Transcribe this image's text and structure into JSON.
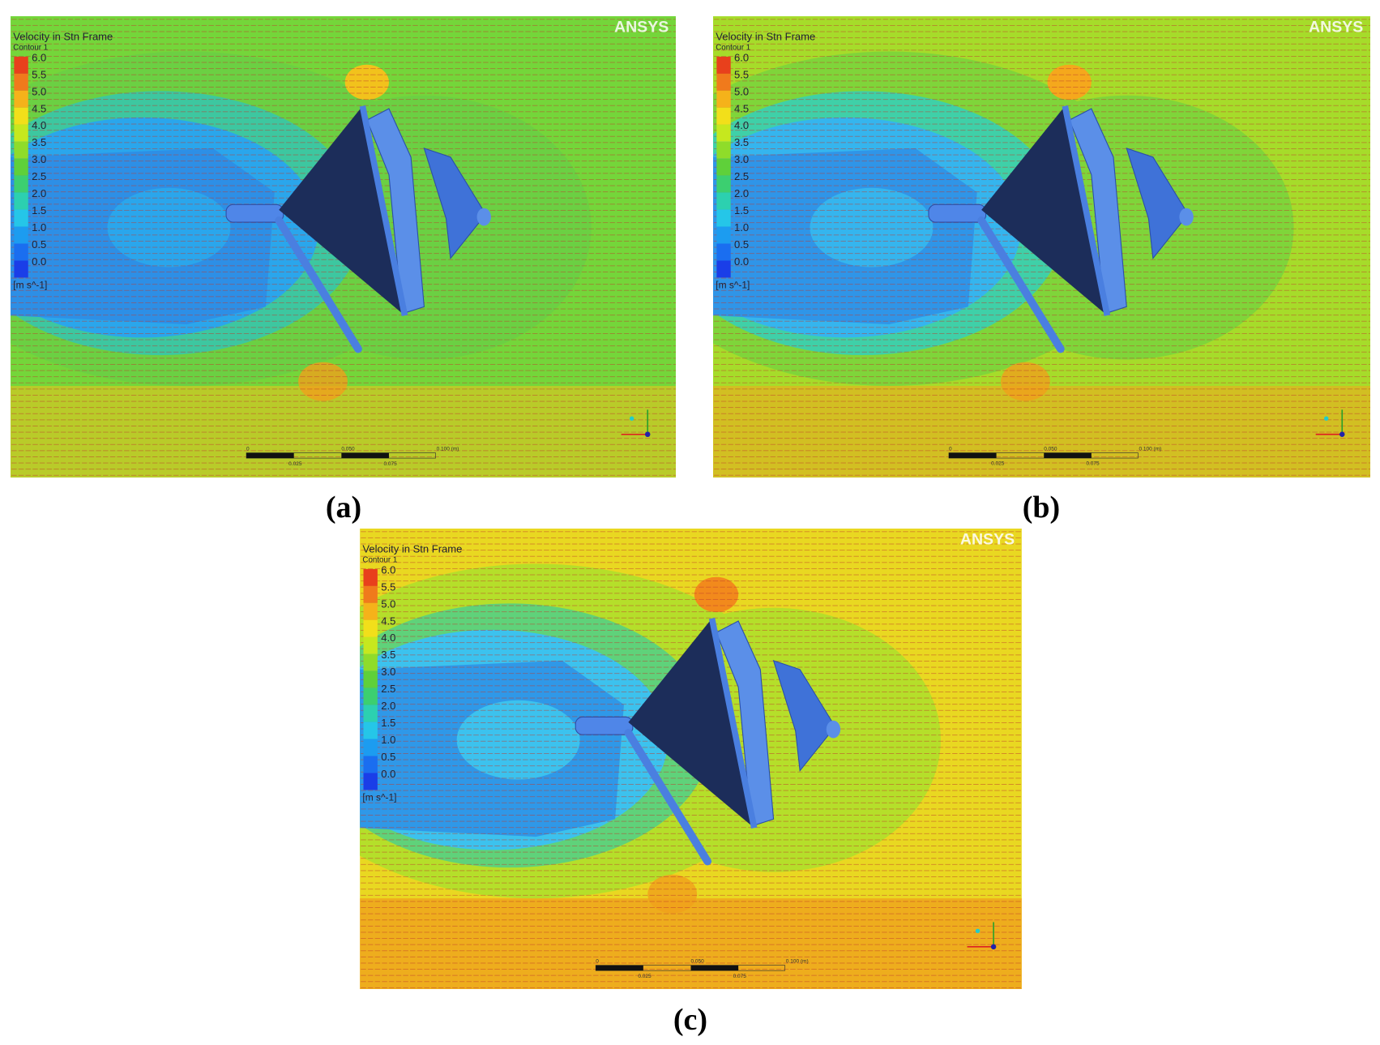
{
  "panels": [
    {
      "label": "(a)",
      "legend": {
        "title": "Velocity in Stn Frame",
        "subtitle": "Contour 1",
        "ticks": [
          "6.0",
          "5.5",
          "5.0",
          "4.5",
          "4.0",
          "3.5",
          "3.0",
          "2.5",
          "2.0",
          "1.5",
          "1.0",
          "0.5",
          "0.0"
        ],
        "unit": "[m s^-1]"
      },
      "logo": "ANSYS",
      "scale_bar": {
        "top": [
          "0",
          "0.050",
          "0.100 (m)"
        ],
        "bottom": [
          "0.025",
          "0.075"
        ]
      }
    },
    {
      "label": "(b)",
      "legend": {
        "title": "Velocity in Stn Frame",
        "subtitle": "Contour 1",
        "ticks": [
          "6.0",
          "5.5",
          "5.0",
          "4.5",
          "4.0",
          "3.5",
          "3.0",
          "2.5",
          "2.0",
          "1.5",
          "1.0",
          "0.5",
          "0.0"
        ],
        "unit": "[m s^-1]"
      },
      "logo": "ANSYS",
      "scale_bar": {
        "top": [
          "0",
          "0.050",
          "0.100 (m)"
        ],
        "bottom": [
          "0.025",
          "0.075"
        ]
      }
    },
    {
      "label": "(c)",
      "legend": {
        "title": "Velocity in Stn Frame",
        "subtitle": "Contour 1",
        "ticks": [
          "6.0",
          "5.5",
          "5.0",
          "4.5",
          "4.0",
          "3.5",
          "3.0",
          "2.5",
          "2.0",
          "1.5",
          "1.0",
          "0.5",
          "0.0"
        ],
        "unit": "[m s^-1]"
      },
      "logo": "ANSYS",
      "scale_bar": {
        "top": [
          "0",
          "0.050",
          "0.100 (m)"
        ],
        "bottom": [
          "0.025",
          "0.075"
        ]
      }
    }
  ]
}
